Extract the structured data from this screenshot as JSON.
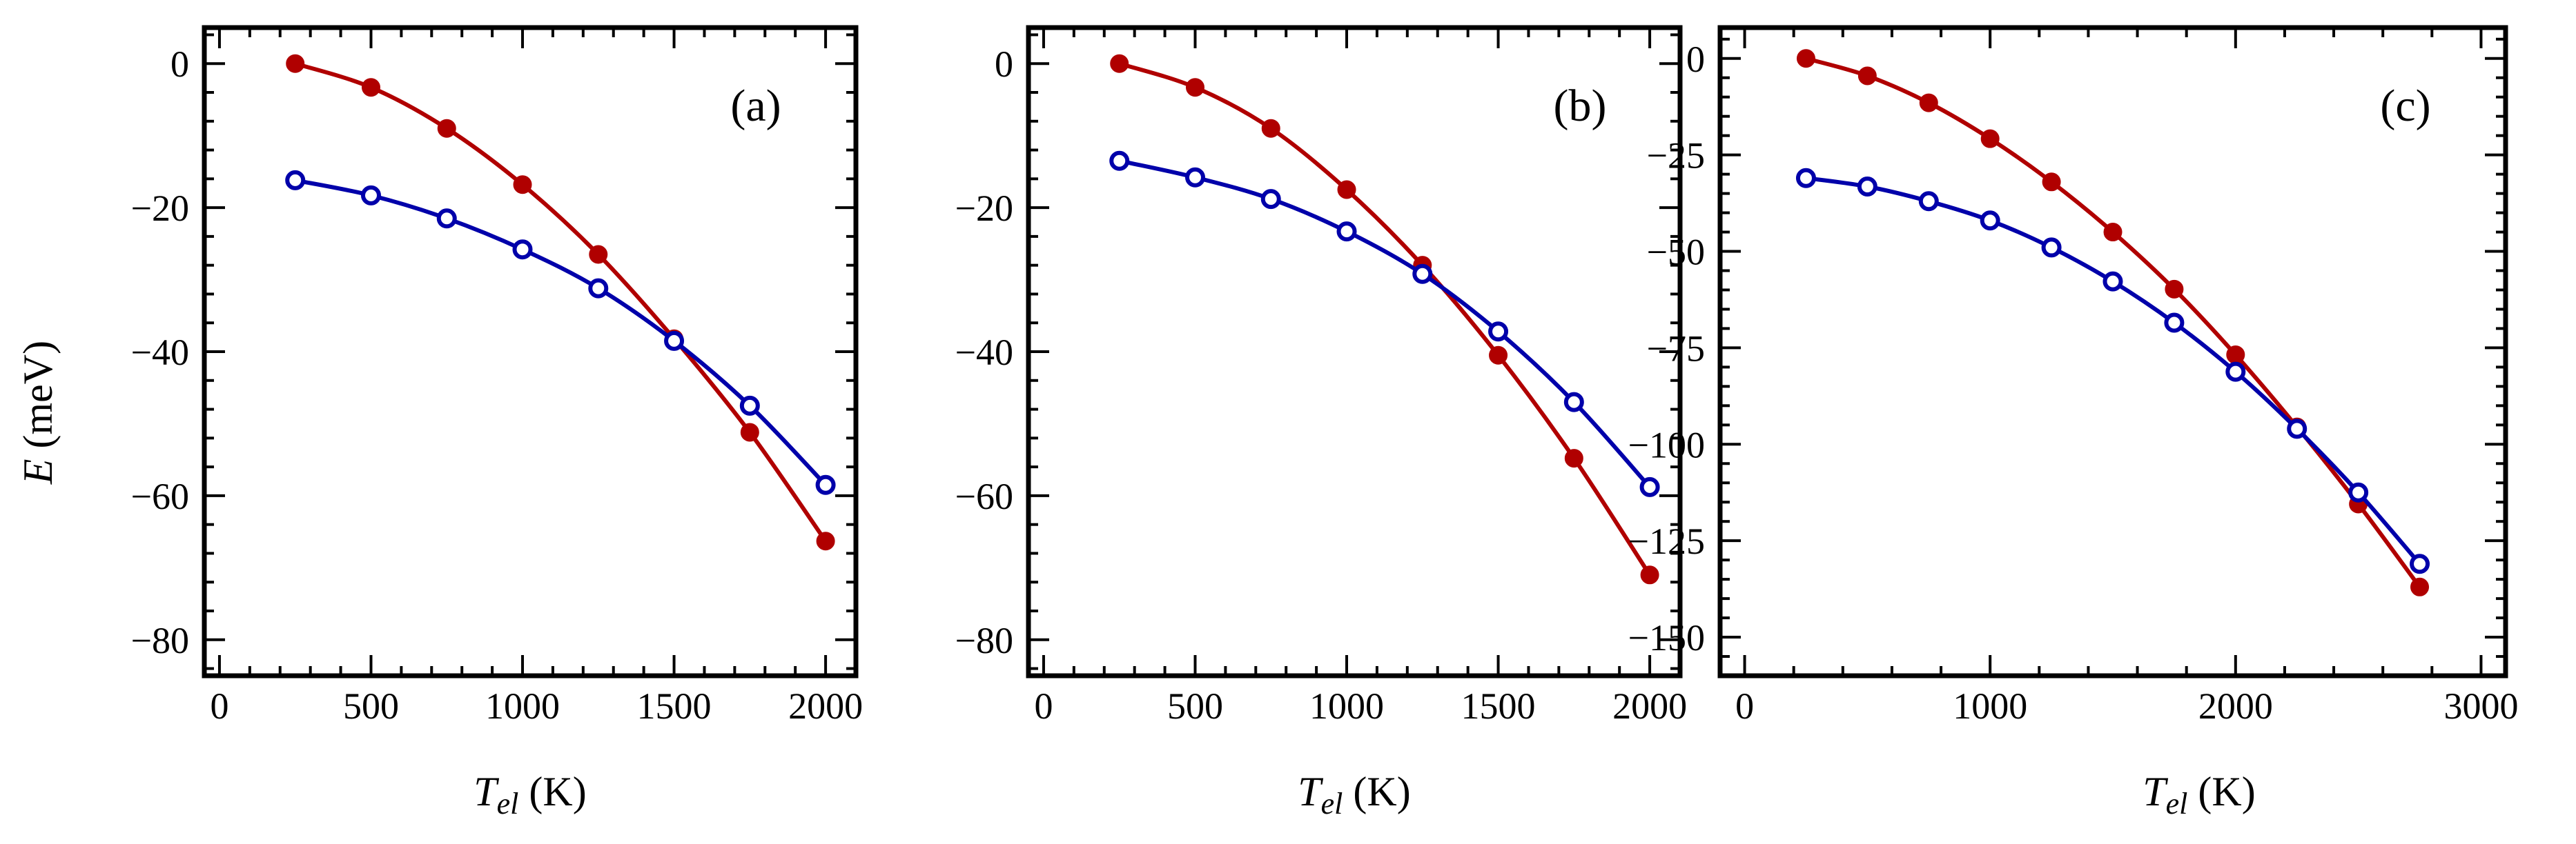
{
  "colors": {
    "red_series": "#b00000",
    "blue_series": "#0000aa"
  },
  "shared": {
    "ylabel_italic": "E",
    "ylabel_rest": " (meV)",
    "xlabel_italic": "T",
    "xlabel_sub": "el",
    "xlabel_rest": " (K)"
  },
  "chart_data": [
    {
      "type": "line",
      "panel_label": "(a)",
      "xlim": [
        -50,
        2100
      ],
      "ylim": [
        -85,
        5
      ],
      "xticks": [
        0,
        500,
        1000,
        1500,
        2000
      ],
      "xtick_labels": [
        "0",
        "500",
        "1000",
        "1500",
        "2000"
      ],
      "yticks": [
        0,
        -20,
        -40,
        -60,
        -80
      ],
      "ytick_labels": [
        "0",
        "−20",
        "−40",
        "−60",
        "−80"
      ],
      "xlabel": "T_el (K)",
      "ylabel": "E (meV)",
      "legend": "none",
      "series": [
        {
          "name": "filled",
          "marker": "filled",
          "color": "#b00000",
          "x": [
            250,
            500,
            750,
            1000,
            1250,
            1500,
            1750,
            2000
          ],
          "y": [
            0,
            -3.3,
            -9,
            -16.8,
            -26.5,
            -38.2,
            -51.2,
            -66.3
          ]
        },
        {
          "name": "open",
          "marker": "open",
          "color": "#0000aa",
          "x": [
            250,
            500,
            750,
            1000,
            1250,
            1500,
            1750,
            2000
          ],
          "y": [
            -16.2,
            -18.3,
            -21.5,
            -25.8,
            -31.2,
            -38.5,
            -47.5,
            -58.5
          ]
        }
      ]
    },
    {
      "type": "line",
      "panel_label": "(b)",
      "xlim": [
        -50,
        2100
      ],
      "ylim": [
        -85,
        5
      ],
      "xticks": [
        0,
        500,
        1000,
        1500,
        2000
      ],
      "xtick_labels": [
        "0",
        "500",
        "1000",
        "1500",
        "2000"
      ],
      "yticks": [
        0,
        -20,
        -40,
        -60,
        -80
      ],
      "ytick_labels": [
        "0",
        "−20",
        "−40",
        "−60",
        "−80"
      ],
      "xlabel": "T_el (K)",
      "ylabel": "",
      "legend": "none",
      "series": [
        {
          "name": "filled",
          "marker": "filled",
          "color": "#b00000",
          "x": [
            250,
            500,
            750,
            1000,
            1250,
            1500,
            1750,
            2000
          ],
          "y": [
            0,
            -3.3,
            -9,
            -17.5,
            -28,
            -40.5,
            -54.8,
            -71
          ]
        },
        {
          "name": "open",
          "marker": "open",
          "color": "#0000aa",
          "x": [
            250,
            500,
            750,
            1000,
            1250,
            1500,
            1750,
            2000
          ],
          "y": [
            -13.5,
            -15.8,
            -18.8,
            -23.3,
            -29.2,
            -37.2,
            -47,
            -58.8
          ]
        }
      ]
    },
    {
      "type": "line",
      "panel_label": "(c)",
      "xlim": [
        -100,
        3100
      ],
      "ylim": [
        -160,
        8
      ],
      "xticks": [
        0,
        1000,
        2000,
        3000
      ],
      "xtick_labels": [
        "0",
        "1000",
        "2000",
        "3000"
      ],
      "yticks": [
        0,
        -25,
        -50,
        -75,
        -100,
        -125,
        -150
      ],
      "ytick_labels": [
        "0",
        "−25",
        "−50",
        "−75",
        "−100",
        "−125",
        "−150"
      ],
      "xlabel": "T_el (K)",
      "ylabel": "",
      "legend": "none",
      "series": [
        {
          "name": "filled",
          "marker": "filled",
          "color": "#b00000",
          "x": [
            250,
            500,
            750,
            1000,
            1250,
            1500,
            1750,
            2000,
            2250,
            2500,
            2750
          ],
          "y": [
            0,
            -4.5,
            -11.5,
            -20.8,
            -32,
            -45,
            -59.8,
            -76.8,
            -95.5,
            -115.5,
            -137
          ]
        },
        {
          "name": "open",
          "marker": "open",
          "color": "#0000aa",
          "x": [
            250,
            500,
            750,
            1000,
            1250,
            1500,
            1750,
            2000,
            2250,
            2500,
            2750
          ],
          "y": [
            -31,
            -33.2,
            -37,
            -42,
            -49,
            -57.8,
            -68.5,
            -81.2,
            -96,
            -112.5,
            -131
          ]
        }
      ]
    }
  ]
}
